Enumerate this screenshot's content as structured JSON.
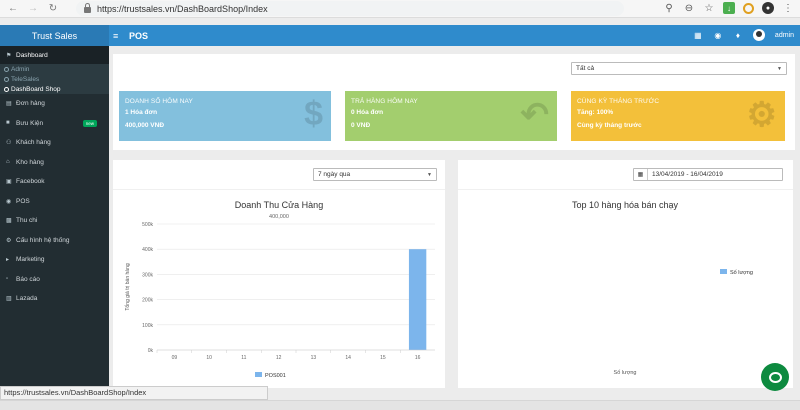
{
  "browser": {
    "url_text": "https://trustsales.vn/DashBoardShop/Index",
    "status_url": "https://trustsales.vn/DashBoardShop/Index"
  },
  "app": {
    "brand": "Trust Sales",
    "page_title": "POS",
    "user_name": "admin"
  },
  "sidebar": {
    "header": "Dashboard",
    "subitems": [
      {
        "label": "Admin",
        "active": false
      },
      {
        "label": "TeleSales",
        "active": false
      },
      {
        "label": "DashBoard Shop",
        "active": true
      }
    ],
    "items": [
      {
        "label": "Đơn hàng",
        "icon": "cart-icon"
      },
      {
        "label": "Bưu Kiện",
        "icon": "truck-icon",
        "badge": "new"
      },
      {
        "label": "Khách hàng",
        "icon": "users-icon"
      },
      {
        "label": "Kho hàng",
        "icon": "home-icon"
      },
      {
        "label": "Facebook",
        "icon": "facebook-icon"
      },
      {
        "label": "POS",
        "icon": "globe-icon"
      },
      {
        "label": "Thu chi",
        "icon": "money-icon"
      },
      {
        "label": "Cấu hình hệ thống",
        "icon": "gears-icon"
      },
      {
        "label": "Marketing",
        "icon": "bullhorn-icon"
      },
      {
        "label": "Báo cáo",
        "icon": "report-icon"
      },
      {
        "label": "Lazada",
        "icon": "shopping-icon"
      }
    ]
  },
  "filter": {
    "selected": "Tất cả"
  },
  "stats": [
    {
      "title": "DOANH SỐ HÔM NAY",
      "line1": "1 Hóa đơn",
      "line2": "400,000 VNĐ",
      "color": "#83c0dd",
      "icon": "dollar-icon"
    },
    {
      "title": "TRẢ HÀNG HÔM NAY",
      "line1": "0 Hóa đơn",
      "line2": "0 VNĐ",
      "color": "#a3ce6e",
      "icon": "reply-icon"
    },
    {
      "title": "CÙNG KỲ THÁNG TRƯỚC",
      "line1": "Tăng: 100%",
      "line2": "Cùng kỳ tháng trước",
      "color": "#f3c03a",
      "icon": "gears-icon"
    }
  ],
  "left_chart_panel": {
    "range_select": "7 ngày qua"
  },
  "right_chart_panel": {
    "date_range": "13/04/2019 - 16/04/2019",
    "title": "Top 10 hàng hóa bán chạy",
    "legend": "Số lượng",
    "xlabel": "Số lượng"
  },
  "chart_data": [
    {
      "type": "bar",
      "title": "Doanh Thu Cửa Hàng",
      "subtitle": "400,000",
      "ylabel": "Tổng giá trị bán hàng",
      "categories": [
        "09",
        "10",
        "11",
        "12",
        "13",
        "14",
        "15",
        "16"
      ],
      "series": [
        {
          "name": "POS001",
          "values": [
            0,
            0,
            0,
            0,
            0,
            0,
            0,
            400000
          ]
        }
      ],
      "yticks": [
        "0k",
        "100k",
        "200k",
        "300k",
        "400k",
        "500k"
      ],
      "ylim": [
        0,
        500000
      ],
      "grid": true,
      "legend": "bottom",
      "color": "#7cb5ec"
    },
    {
      "type": "bar",
      "title": "Top 10 hàng hóa bán chạy",
      "xlabel": "Số lượng",
      "categories": [],
      "series": [
        {
          "name": "Số lượng",
          "values": []
        }
      ],
      "legend": "right",
      "color": "#7cb5ec"
    }
  ]
}
